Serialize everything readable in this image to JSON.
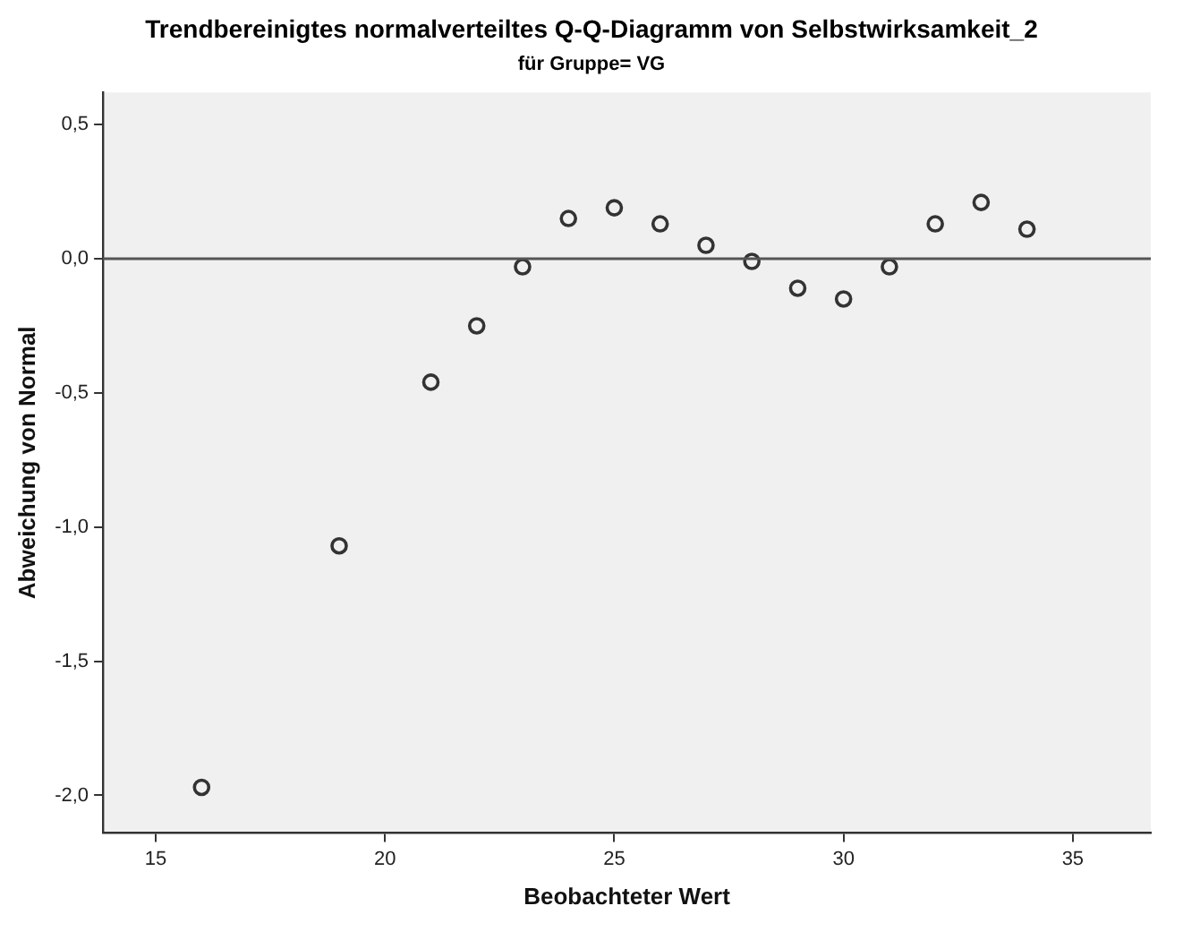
{
  "chart_data": {
    "type": "scatter",
    "title": "Trendbereinigtes normalverteiltes Q-Q-Diagramm von Selbstwirksamkeit_2",
    "subtitle": "für Gruppe= VG",
    "xlabel": "Beobachteter Wert",
    "ylabel": "Abweichung von Normal",
    "x": [
      16,
      19,
      21,
      22,
      23,
      24,
      25,
      26,
      27,
      28,
      29,
      30,
      31,
      32,
      33,
      34
    ],
    "series": [
      {
        "color": "#333333",
        "values": [
          -1.97,
          -1.07,
          -0.46,
          -0.25,
          -0.03,
          0.15,
          0.19,
          0.13,
          0.05,
          -0.01,
          -0.11,
          -0.15,
          -0.03,
          0.13,
          0.21,
          0.11
        ]
      }
    ],
    "xlim": [
      13.85,
      36.7
    ],
    "xticks": [
      15,
      20,
      25,
      30,
      35
    ],
    "ylim": [
      -2.14,
      0.62
    ],
    "yticks": [
      {
        "value": -2,
        "label": "-2,0"
      },
      {
        "value": -1.5,
        "label": "-1,5"
      },
      {
        "value": -1,
        "label": "-1,0"
      },
      {
        "value": -0.5,
        "label": "-0,5"
      },
      {
        "value": 0,
        "label": "0,0"
      },
      {
        "value": 0.5,
        "label": "0,5"
      }
    ],
    "ref_lines": [
      {
        "axis": "y",
        "value": 0,
        "color": "#555555"
      }
    ],
    "marker": "circle",
    "grid": false,
    "legend": false
  }
}
